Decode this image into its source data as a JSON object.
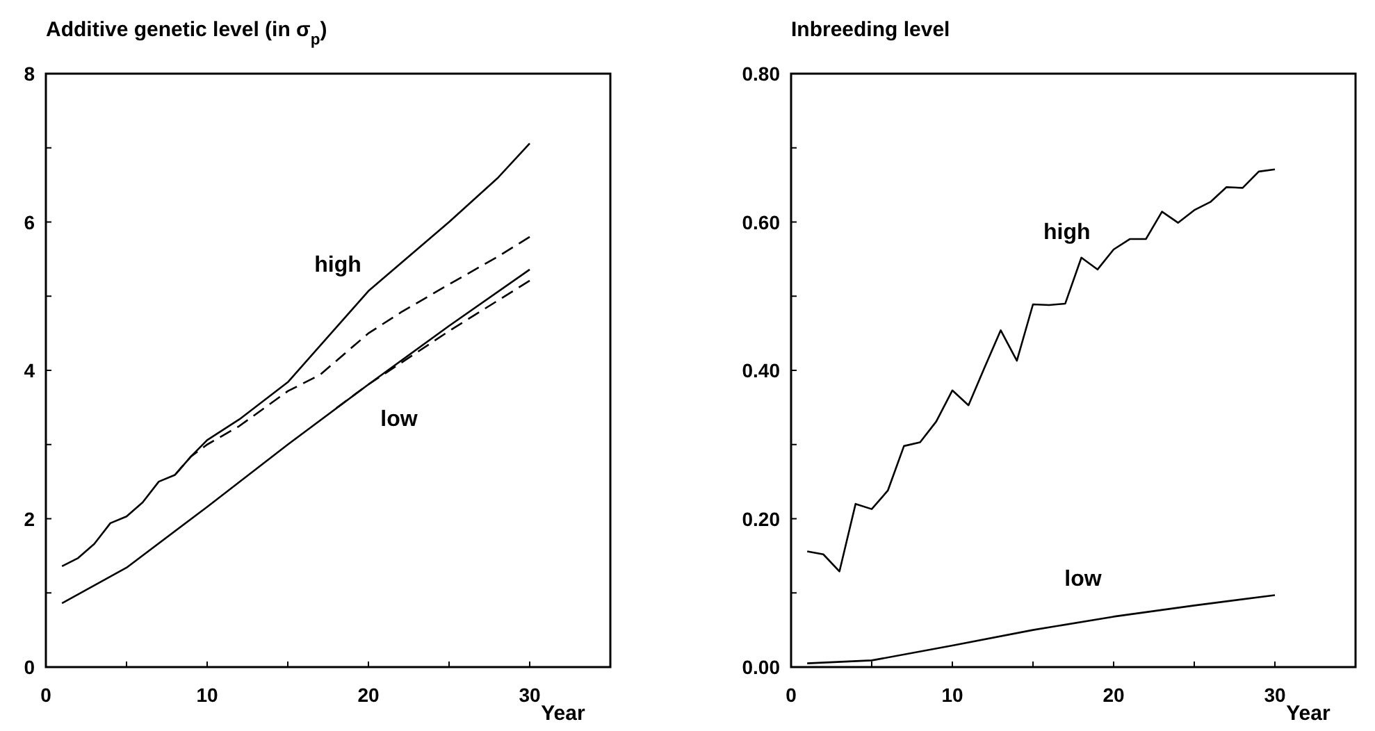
{
  "chart_data": [
    {
      "type": "line",
      "title": "Additive genetic level (in σ$_{p}$)",
      "xlabel": "Year",
      "xlim": [
        0,
        35
      ],
      "xticks": [
        0,
        {
          "value": 5,
          "label": null
        },
        10,
        {
          "value": 15,
          "label": null
        },
        20,
        {
          "value": 25,
          "label": null
        },
        30
      ],
      "ylim": [
        0,
        8
      ],
      "yticks": [
        0,
        {
          "value": 1,
          "label": null
        },
        2,
        {
          "value": 3,
          "label": null
        },
        4,
        {
          "value": 5,
          "label": null
        },
        6,
        {
          "value": 7,
          "label": null
        },
        8
      ],
      "grid": false,
      "marker": "none",
      "series": [
        {
          "name": "high",
          "color": "#000000",
          "line_style": "solid",
          "x": [
            1,
            2,
            3,
            4,
            5,
            6,
            7,
            8,
            9,
            10,
            12,
            15,
            20,
            25,
            28,
            30
          ],
          "values": [
            1.36,
            1.47,
            1.66,
            1.94,
            2.03,
            2.22,
            2.5,
            2.59,
            2.84,
            3.06,
            3.34,
            3.84,
            5.07,
            6.0,
            6.59,
            7.06
          ]
        },
        {
          "color": "#000000",
          "line_style": "dashed",
          "x": [
            8,
            9,
            10,
            12,
            15,
            17,
            20,
            22,
            25,
            28,
            30
          ],
          "values": [
            2.59,
            2.84,
            3.0,
            3.25,
            3.72,
            3.94,
            4.5,
            4.78,
            5.16,
            5.53,
            5.8
          ]
        },
        {
          "name": "low",
          "color": "#000000",
          "line_style": "solid",
          "x": [
            1,
            5,
            10,
            15,
            20,
            25,
            30
          ],
          "values": [
            0.86,
            1.34,
            2.16,
            3.0,
            3.81,
            4.6,
            5.36
          ]
        },
        {
          "color": "#000000",
          "line_style": "dashed",
          "x": [
            18,
            20,
            25,
            30
          ],
          "values": [
            3.49,
            3.81,
            4.53,
            5.21
          ]
        }
      ]
    },
    {
      "type": "line",
      "title": "Inbreeding level",
      "xlabel": "Year",
      "xlim": [
        0,
        35
      ],
      "xticks": [
        0,
        {
          "value": 5,
          "label": null
        },
        10,
        {
          "value": 15,
          "label": null
        },
        20,
        {
          "value": 25,
          "label": null
        },
        30
      ],
      "ylim": [
        0,
        0.8
      ],
      "yticks": [
        {
          "value": 0,
          "label": "0.00"
        },
        {
          "value": 0.1,
          "label": null
        },
        {
          "value": 0.2,
          "label": "0.20"
        },
        {
          "value": 0.3,
          "label": null
        },
        {
          "value": 0.4,
          "label": "0.40"
        },
        {
          "value": 0.5,
          "label": null
        },
        {
          "value": 0.6,
          "label": "0.60"
        },
        {
          "value": 0.7,
          "label": null
        },
        {
          "value": 0.8,
          "label": "0.80"
        }
      ],
      "grid": false,
      "marker": "none",
      "series": [
        {
          "name": "high",
          "color": "#000000",
          "line_style": "solid",
          "x": [
            1,
            2,
            3,
            4,
            5,
            6,
            7,
            8,
            9,
            10,
            11,
            12,
            13,
            14,
            15,
            16,
            17,
            18,
            19,
            20,
            21,
            22,
            23,
            24,
            25,
            26,
            27,
            28,
            29,
            30
          ],
          "values": [
            0.156,
            0.152,
            0.129,
            0.22,
            0.213,
            0.238,
            0.298,
            0.303,
            0.331,
            0.373,
            0.353,
            0.404,
            0.454,
            0.413,
            0.489,
            0.488,
            0.49,
            0.552,
            0.536,
            0.563,
            0.577,
            0.577,
            0.614,
            0.599,
            0.616,
            0.627,
            0.647,
            0.646,
            0.668,
            0.671
          ]
        },
        {
          "name": "low",
          "color": "#000000",
          "line_style": "solid",
          "x": [
            1,
            5,
            10,
            15,
            20,
            25,
            30
          ],
          "values": [
            0.005,
            0.009,
            0.029,
            0.05,
            0.068,
            0.083,
            0.097
          ]
        }
      ]
    }
  ]
}
